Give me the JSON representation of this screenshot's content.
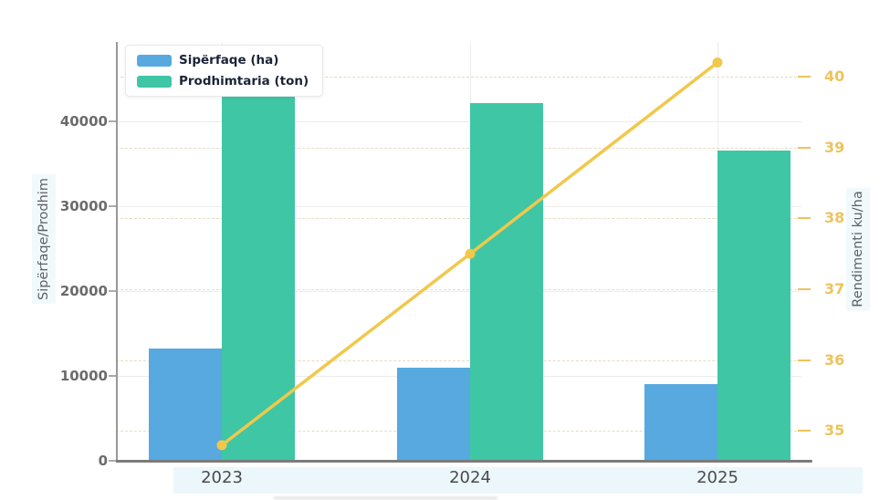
{
  "chart_data": {
    "type": "bar",
    "subtype": "grouped-bars-with-line-secondary-axis",
    "title": "",
    "categories": [
      "2023",
      "2024",
      "2025"
    ],
    "series": [
      {
        "name": "Sipërfaqe (ha)",
        "type": "bar",
        "axis": "left",
        "color": "#57a9e0",
        "values": [
          13200,
          11000,
          9000
        ]
      },
      {
        "name": "Prodhimtaria (ton)",
        "type": "bar",
        "axis": "left",
        "color": "#3fc6a4",
        "values": [
          46900,
          42100,
          36600
        ]
      },
      {
        "name": "Rendimenti ku/ha",
        "type": "line",
        "axis": "right",
        "color": "#f1c84b",
        "values": [
          34.8,
          37.5,
          40.2
        ]
      }
    ],
    "left_axis": {
      "label": "Sipërfaqe/Prodhim",
      "ticks": [
        0,
        10000,
        20000,
        30000,
        40000
      ],
      "min": 0,
      "max": 49350
    },
    "right_axis": {
      "label": "Rendimenti ku/ha",
      "ticks": [
        35,
        36,
        37,
        38,
        39,
        40
      ],
      "min": 34.58,
      "max": 40.49
    },
    "legend": {
      "position": "top-left",
      "entries": [
        "Sipërfaqe (ha)",
        "Prodhimtaria (ton)"
      ]
    },
    "grid": true
  },
  "colors": {
    "bar_blue": "#57a9e0",
    "bar_green": "#3fc6a4",
    "line_yellow": "#f1c84b",
    "right_tick_text": "#edc35c",
    "left_tick_text": "#6b6b6b",
    "x_label_text": "#4b4b4b",
    "axis_spine": "#7b7b7b",
    "background": "#ffffff"
  }
}
